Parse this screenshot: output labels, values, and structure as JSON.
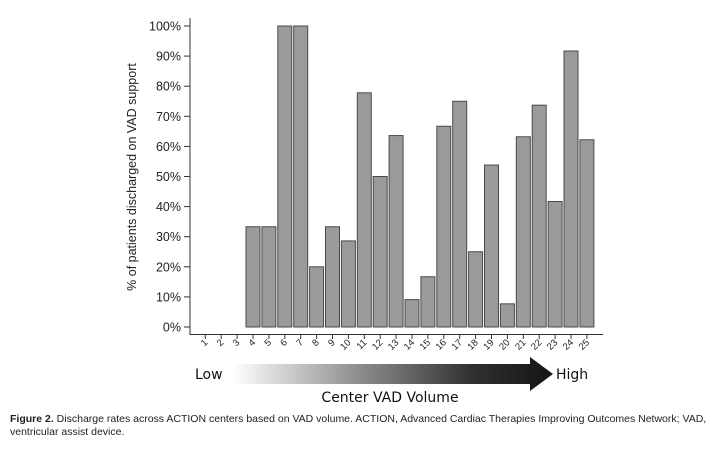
{
  "chart_data": {
    "type": "bar",
    "title": "",
    "xlabel": "Center VAD Volume",
    "ylabel": "% of patients discharged on VAD support",
    "categories": [
      "1",
      "2",
      "3",
      "4",
      "5",
      "6",
      "7",
      "8",
      "9",
      "10",
      "11",
      "12",
      "13",
      "14",
      "15",
      "16",
      "17",
      "18",
      "19",
      "20",
      "21",
      "22",
      "23",
      "24",
      "25"
    ],
    "values": [
      0,
      0,
      0,
      33.3,
      33.3,
      100,
      100,
      20,
      33.3,
      28.6,
      77.8,
      50,
      63.6,
      9.1,
      16.7,
      66.7,
      75,
      25,
      53.8,
      7.7,
      63.2,
      73.7,
      41.7,
      91.7,
      62.2
    ],
    "ylim": [
      0,
      100
    ],
    "yticks": [
      0,
      10,
      20,
      30,
      40,
      50,
      60,
      70,
      80,
      90,
      100
    ],
    "ytick_labels": [
      "0%",
      "10%",
      "20%",
      "30%",
      "40%",
      "50%",
      "60%",
      "70%",
      "80%",
      "90%",
      "100%"
    ],
    "grid": false,
    "legend": null,
    "bar_color": "#9a9a9a",
    "bar_edge_color": "#4a4a4a",
    "volume_arrow": {
      "low_label": "Low",
      "high_label": "High",
      "axis_title": "Center VAD Volume"
    }
  },
  "caption": {
    "label": "Figure 2.",
    "text": " Discharge rates across ACTION centers based on VAD volume. ACTION, Advanced Cardiac Therapies Improving Outcomes Network; VAD, ventricular assist device."
  }
}
